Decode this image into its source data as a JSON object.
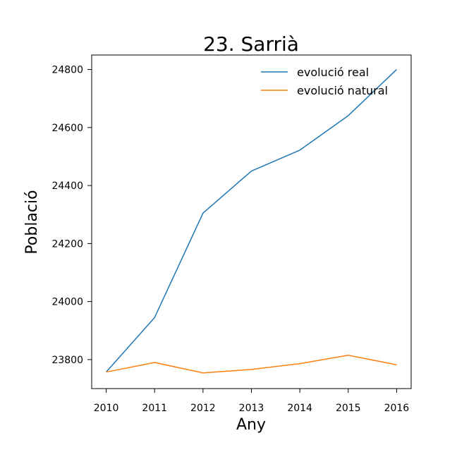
{
  "chart_data": {
    "type": "line",
    "title": "23. Sarrià",
    "xlabel": "Any",
    "ylabel": "Població",
    "x": [
      2010,
      2011,
      2012,
      2013,
      2014,
      2015,
      2016
    ],
    "xticks": [
      "2010",
      "2011",
      "2012",
      "2013",
      "2014",
      "2015",
      "2016"
    ],
    "yticks": [
      "23800",
      "24000",
      "24200",
      "24400",
      "24600",
      "24800"
    ],
    "ytick_values": [
      23800,
      24000,
      24200,
      24400,
      24600,
      24800
    ],
    "xlim": [
      2009.7,
      2016.3
    ],
    "ylim": [
      23700,
      24850
    ],
    "grid": false,
    "legend_position": "top-right",
    "series": [
      {
        "name": "evolució real",
        "color": "#1f77b4",
        "values": [
          23757,
          23945,
          24305,
          24450,
          24522,
          24641,
          24800
        ]
      },
      {
        "name": "evolució natural",
        "color": "#ff7f0e",
        "values": [
          23757,
          23790,
          23754,
          23766,
          23786,
          23815,
          23782
        ]
      }
    ]
  }
}
